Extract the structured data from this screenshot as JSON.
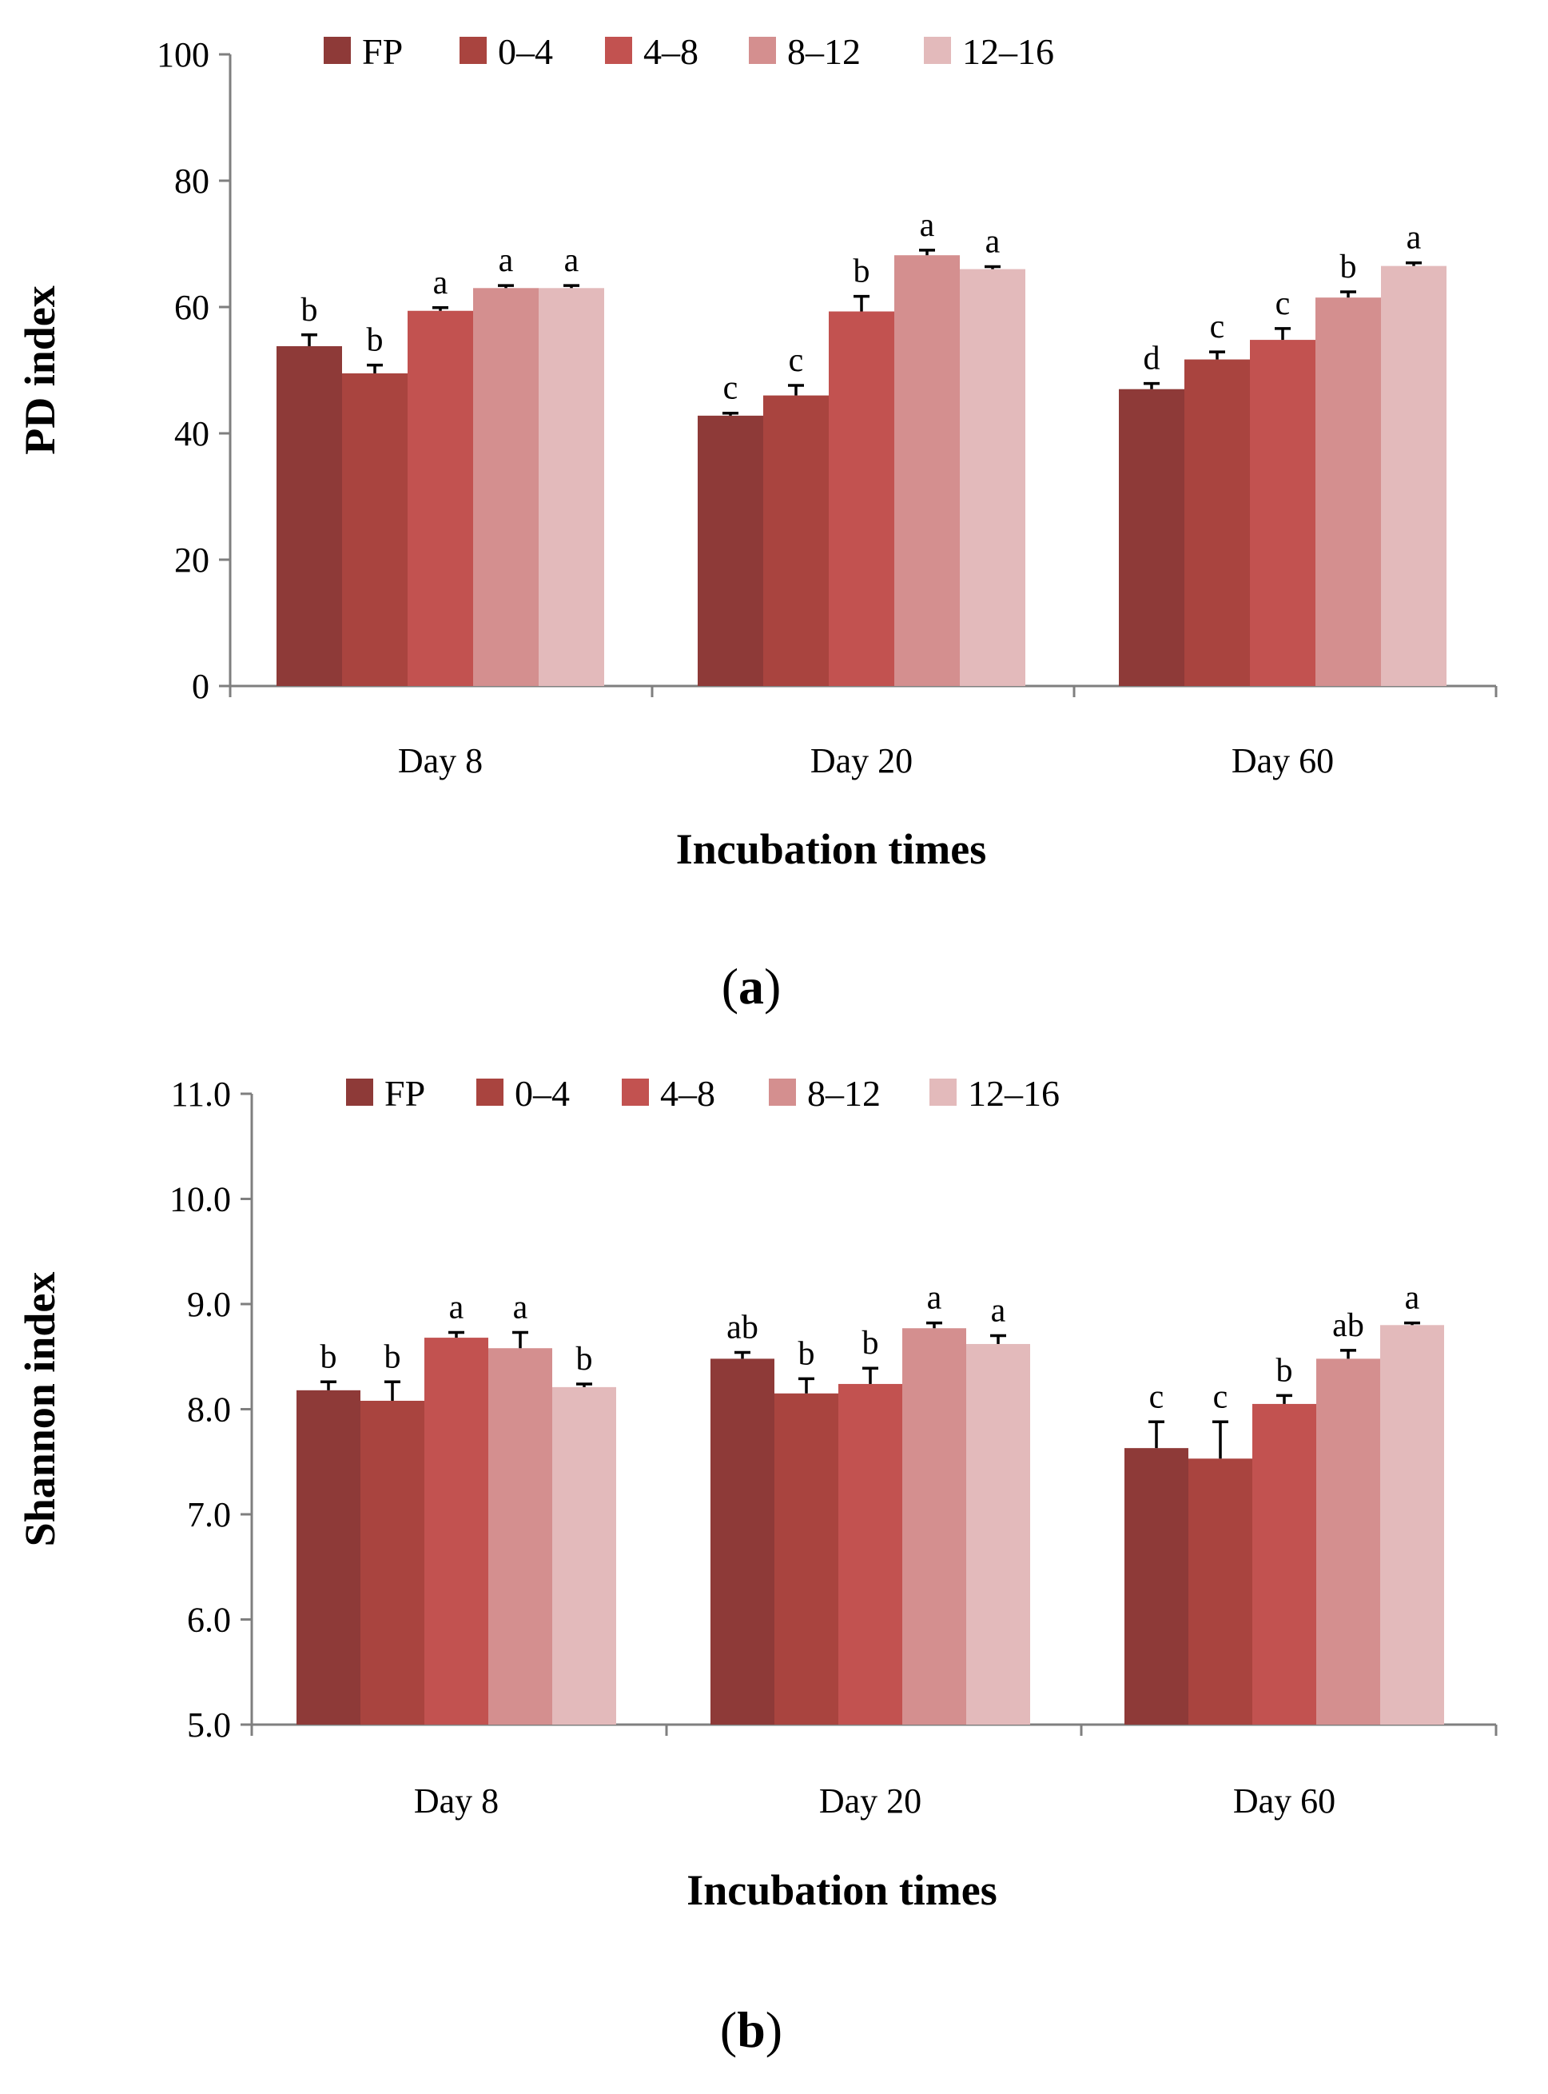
{
  "chart_data": [
    {
      "type": "bar",
      "panel_label": "a",
      "ylabel": "PD index",
      "xlabel": "Incubation times",
      "ylim": [
        0,
        100
      ],
      "yticks": [
        "0",
        "20",
        "40",
        "60",
        "80",
        "100"
      ],
      "categories": [
        "Day 8",
        "Day 20",
        "Day 60"
      ],
      "series": [
        {
          "name": "FP",
          "color": "#8e3a38",
          "values": [
            53.8,
            42.8,
            47.0
          ],
          "errors": [
            1.8,
            0.4,
            0.9
          ],
          "letters": [
            "b",
            "c",
            "d"
          ]
        },
        {
          "name": "0–4",
          "color": "#a9443f",
          "values": [
            49.5,
            46.0,
            51.7
          ],
          "errors": [
            1.3,
            1.6,
            1.2
          ],
          "letters": [
            "b",
            "c",
            "c"
          ]
        },
        {
          "name": "4–8",
          "color": "#c25250",
          "values": [
            59.4,
            59.3,
            54.8
          ],
          "errors": [
            0.5,
            2.4,
            1.8
          ],
          "letters": [
            "a",
            "b",
            "c"
          ]
        },
        {
          "name": "8–12",
          "color": "#d48f8f",
          "values": [
            63.0,
            68.2,
            61.5
          ],
          "errors": [
            0.4,
            0.8,
            0.9
          ],
          "letters": [
            "a",
            "a",
            "b"
          ]
        },
        {
          "name": "12–16",
          "color": "#e3babb",
          "values": [
            63.0,
            66.0,
            66.5
          ],
          "errors": [
            0.4,
            0.4,
            0.5
          ],
          "letters": [
            "a",
            "a",
            "a"
          ]
        }
      ]
    },
    {
      "type": "bar",
      "panel_label": "b",
      "ylabel": "Shannon index",
      "xlabel": "Incubation times",
      "ylim": [
        5.0,
        11.0
      ],
      "yticks": [
        "5.0",
        "6.0",
        "7.0",
        "8.0",
        "9.0",
        "10.0",
        "11.0"
      ],
      "categories": [
        "Day 8",
        "Day 20",
        "Day 60"
      ],
      "series": [
        {
          "name": "FP",
          "color": "#8e3a38",
          "values": [
            8.18,
            8.48,
            7.63
          ],
          "errors": [
            0.08,
            0.06,
            0.25
          ],
          "letters": [
            "b",
            "ab",
            "c"
          ]
        },
        {
          "name": "0–4",
          "color": "#a9443f",
          "values": [
            8.08,
            8.15,
            7.53
          ],
          "errors": [
            0.18,
            0.14,
            0.35
          ],
          "letters": [
            "b",
            "b",
            "c"
          ]
        },
        {
          "name": "4–8",
          "color": "#c25250",
          "values": [
            8.68,
            8.24,
            8.05
          ],
          "errors": [
            0.05,
            0.15,
            0.08
          ],
          "letters": [
            "a",
            "b",
            "b"
          ]
        },
        {
          "name": "8–12",
          "color": "#d48f8f",
          "values": [
            8.58,
            8.77,
            8.48
          ],
          "errors": [
            0.15,
            0.05,
            0.08
          ],
          "letters": [
            "a",
            "a",
            "ab"
          ]
        },
        {
          "name": "12–16",
          "color": "#e3babb",
          "values": [
            8.21,
            8.62,
            8.8
          ],
          "errors": [
            0.03,
            0.08,
            0.02
          ],
          "letters": [
            "b",
            "a",
            "a"
          ]
        }
      ]
    }
  ]
}
